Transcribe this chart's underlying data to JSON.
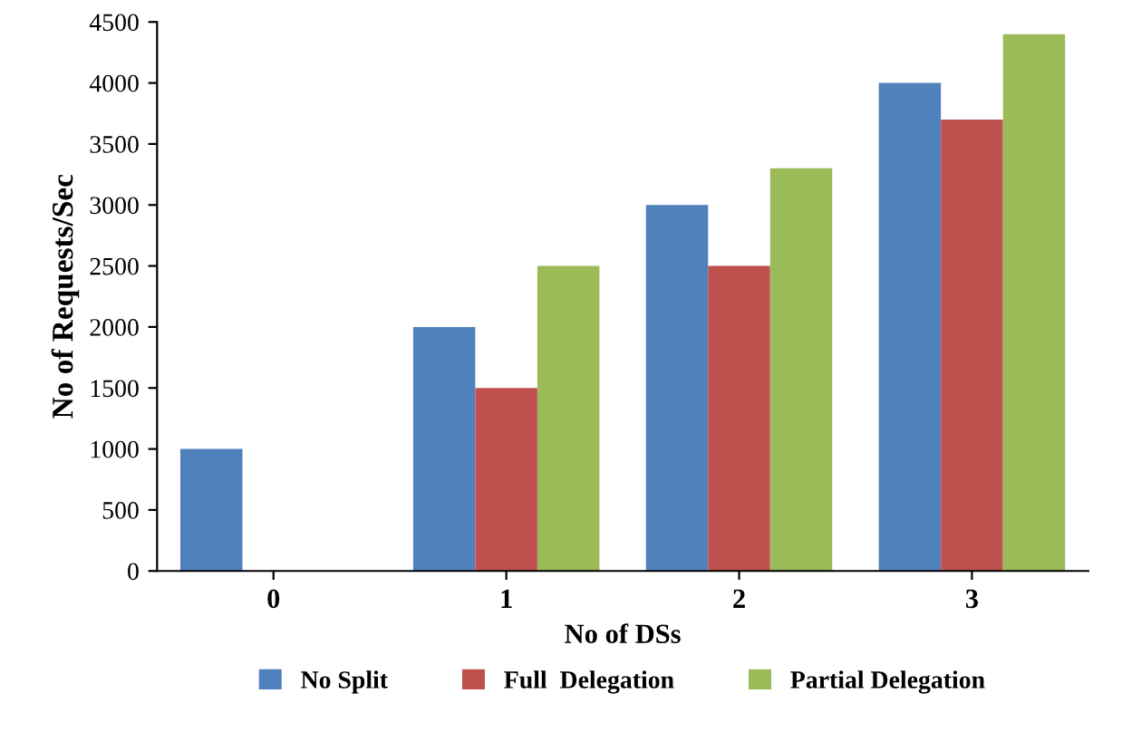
{
  "chart_data": {
    "type": "bar",
    "xlabel": "No of DSs",
    "ylabel": "No of Requests/Sec",
    "categories": [
      "0",
      "1",
      "2",
      "3"
    ],
    "series": [
      {
        "name": "No Split",
        "color": "#4f81bd",
        "values": [
          1000,
          2000,
          3000,
          4000
        ]
      },
      {
        "name": "Full  Delegation",
        "color": "#c0504d",
        "values": [
          0,
          1500,
          2500,
          3700
        ]
      },
      {
        "name": "Partial Delegation",
        "color": "#9bbb59",
        "values": [
          0,
          2500,
          3300,
          4400
        ]
      }
    ],
    "ylim": [
      0,
      4500
    ],
    "yticks": [
      0,
      500,
      1000,
      1500,
      2000,
      2500,
      3000,
      3500,
      4000,
      4500
    ],
    "grid": false,
    "legend": "bottom"
  }
}
